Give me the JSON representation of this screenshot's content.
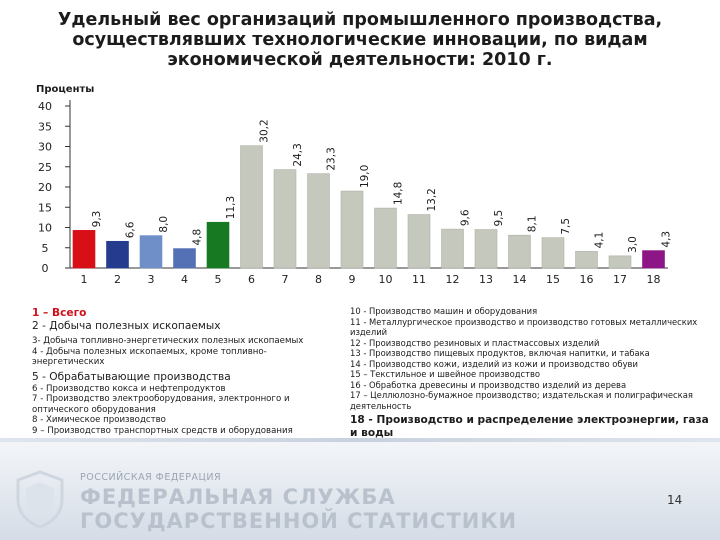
{
  "slide": {
    "title_lines": [
      "Удельный вес организаций промышленного производства,",
      "осуществлявших технологические инновации, по видам",
      "экономической деятельности: 2010 г."
    ],
    "legend_left": [
      "1 – Всего",
      "2 - Добыча полезных ископаемых",
      "3- Добыча топливно-энергетических полезных ископаемых",
      "4 - Добыча полезных ископаемых, кроме топливно-энергетических",
      "5 - Обрабатывающие производства",
      "6 - Производство кокса и нефтепродуктов",
      "7 - Производство электрооборудования, электронного и оптического оборудования",
      "8 - Химическое производство",
      "9 – Производство транспортных средств и оборудования"
    ],
    "legend_right": [
      "10 - Производство машин и оборудования",
      "11 - Металлургическое производство и производство готовых металлических изделий",
      "12 - Производство резиновых и пластмассовых изделий",
      "13 - Производство пищевых продуктов, включая напитки, и табака",
      "14 - Производство кожи, изделий из кожи и производство обуви",
      "15 – Текстильное и швейное производство",
      "16 - Обработка древесины и производство изделий из дерева",
      "17 – Целлюлозно-бумажное производство; издательская и полиграфическая деятельность",
      "18 - Производство и распределение электроэнергии, газа и воды"
    ],
    "footer": {
      "line1": "РОССИЙСКАЯ ФЕДЕРАЦИЯ",
      "line2": "ФЕДЕРАЛЬНАЯ СЛУЖБА",
      "line3": "ГОСУДАРСТВЕННОЙ СТАТИСТИКИ",
      "page_number": "14"
    },
    "colors": {
      "bar_total": "#d80f16",
      "bar_mining": "#243b8e",
      "bar_fuel": "#6f8fc9",
      "bar_nonfuel": "#5571b5",
      "bar_manufacturing": "#177a22",
      "bar_industries": "#c4c8bd",
      "bar_utilities": "#8e1585",
      "axis": "#333333"
    }
  },
  "chart_data": {
    "type": "bar",
    "ylabel": "Проценты",
    "ylim": [
      0,
      40
    ],
    "yticks": [
      0,
      5,
      10,
      15,
      20,
      25,
      30,
      35,
      40
    ],
    "grid": false,
    "categories": [
      "1",
      "2",
      "3",
      "4",
      "5",
      "6",
      "7",
      "8",
      "9",
      "10",
      "11",
      "12",
      "13",
      "14",
      "15",
      "16",
      "17",
      "18"
    ],
    "values": [
      9.3,
      6.6,
      8.0,
      4.8,
      11.3,
      30.2,
      24.3,
      23.3,
      19.0,
      14.8,
      13.2,
      9.6,
      9.5,
      8.1,
      7.5,
      4.1,
      3.0,
      4.3
    ],
    "value_labels": [
      "9,3",
      "6,6",
      "8,0",
      "4,8",
      "11,3",
      "30,2",
      "24,3",
      "23,3",
      "19,0",
      "14,8",
      "13,2",
      "9,6",
      "9,5",
      "8,1",
      "7,5",
      "4,1",
      "3,0",
      "4,3"
    ],
    "bar_colors": [
      "#d80f16",
      "#243b8e",
      "#6f8fc9",
      "#5571b5",
      "#177a22",
      "#c4c8bd",
      "#c4c8bd",
      "#c4c8bd",
      "#c4c8bd",
      "#c4c8bd",
      "#c4c8bd",
      "#c4c8bd",
      "#c4c8bd",
      "#c4c8bd",
      "#c4c8bd",
      "#c4c8bd",
      "#c4c8bd",
      "#8e1585"
    ]
  }
}
